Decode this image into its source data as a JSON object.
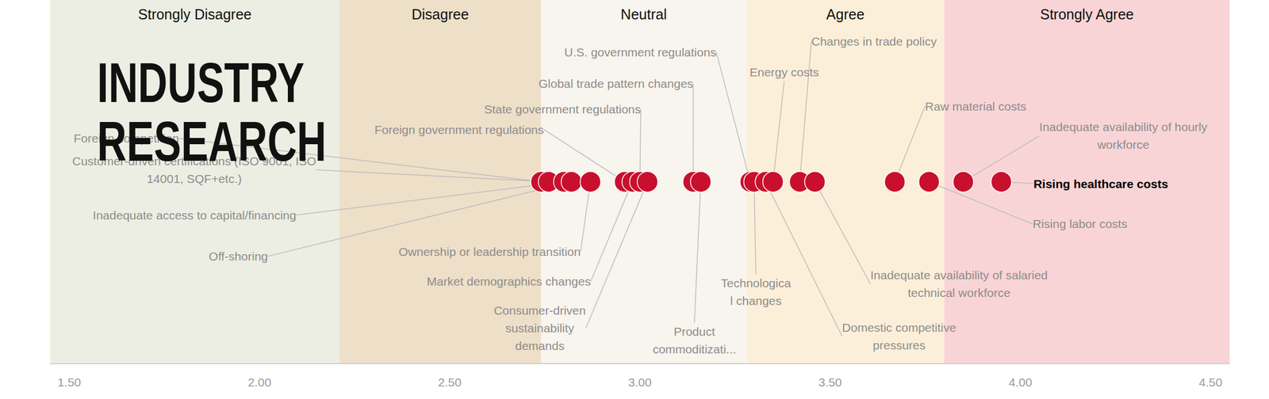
{
  "chart_data": {
    "type": "scatter",
    "watermark": "INDUSTRY\nRESEARCH",
    "labels": [
      "Foreign competition",
      "Customer-driven certifications (ISO 9001, ISO\n14001, SQF+etc.)",
      "Inadequate access to capital/financing",
      "Off-shoring",
      "Ownership or leadership transition",
      "Foreign government regulations",
      "Market demographics changes",
      "State government regulations",
      "Consumer-driven\nsustainability\ndemands",
      "Global trade pattern changes",
      "Product\ncommoditizati...",
      "U.S. government regulations",
      "Technologica\nl changes",
      "Domestic competitive\npressures",
      "Energy costs",
      "Changes in trade policy",
      "Inadequate availability of salaried\ntechnical workforce",
      "Raw material costs",
      "Rising labor costs",
      "Inadequate availability of hourly\nworkforce",
      "Rising healthcare costs"
    ],
    "values": [
      2.74,
      2.76,
      2.8,
      2.82,
      2.87,
      2.96,
      2.98,
      3.0,
      3.02,
      3.14,
      3.16,
      3.29,
      3.3,
      3.33,
      3.35,
      3.42,
      3.46,
      3.67,
      3.76,
      3.85,
      3.95
    ],
    "color": "#c8102e",
    "bands": [
      {
        "label": "Strongly Disagree",
        "from": 1.45,
        "to": 2.21,
        "color": "#eceee3"
      },
      {
        "label": "Disagree",
        "from": 2.21,
        "to": 2.74,
        "color": "#eedfc8"
      },
      {
        "label": "Neutral",
        "from": 2.74,
        "to": 3.28,
        "color": "#f8f4ee"
      },
      {
        "label": "Agree",
        "from": 3.28,
        "to": 3.8,
        "color": "#fcefd9"
      },
      {
        "label": "Strongly Agree",
        "from": 3.8,
        "to": 4.55,
        "color": "#f9d4d6"
      }
    ],
    "xlim": [
      1.45,
      4.55
    ],
    "xticks": [
      {
        "value": 1.5,
        "label": "1.50"
      },
      {
        "value": 2,
        "label": "2.00"
      },
      {
        "value": 2.5,
        "label": "2.50"
      },
      {
        "value": 3,
        "label": "3.00"
      },
      {
        "value": 3.5,
        "label": "3.50"
      },
      {
        "value": 4,
        "label": "4.00"
      },
      {
        "value": 4.5,
        "label": "4.50"
      }
    ],
    "grid": false,
    "tick_labels": "x"
  }
}
